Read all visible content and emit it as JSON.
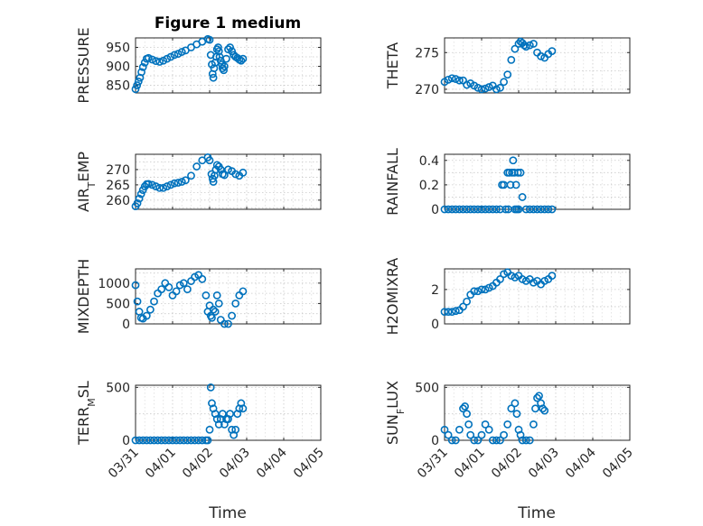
{
  "figure_title": "Figure 1 medium",
  "marker_color": "#0072BD",
  "chart_data": [
    {
      "type": "scatter",
      "ylabel": "PRESSURE",
      "title": "Figure 1 medium",
      "xlim": [
        0,
        5
      ],
      "ylim": [
        830,
        975
      ],
      "yticks": [
        850,
        900,
        950
      ],
      "x": [
        0.0,
        0.04,
        0.08,
        0.12,
        0.16,
        0.2,
        0.25,
        0.3,
        0.35,
        0.45,
        0.55,
        0.65,
        0.75,
        0.85,
        0.95,
        1.05,
        1.15,
        1.25,
        1.35,
        1.5,
        1.65,
        1.8,
        1.95,
        2.0,
        2.03,
        2.06,
        2.08,
        2.1,
        2.12,
        2.15,
        2.18,
        2.2,
        2.23,
        2.25,
        2.27,
        2.3,
        2.33,
        2.35,
        2.38,
        2.4,
        2.45,
        2.5,
        2.55,
        2.6,
        2.65,
        2.7,
        2.75,
        2.8,
        2.85,
        2.9
      ],
      "y": [
        840,
        850,
        860,
        870,
        885,
        898,
        910,
        920,
        922,
        918,
        914,
        912,
        915,
        920,
        925,
        930,
        933,
        938,
        942,
        950,
        958,
        965,
        972,
        970,
        930,
        905,
        880,
        870,
        895,
        910,
        925,
        945,
        950,
        940,
        925,
        915,
        905,
        895,
        890,
        900,
        920,
        945,
        950,
        940,
        930,
        925,
        922,
        918,
        915,
        920
      ]
    },
    {
      "type": "scatter",
      "ylabel": "THETA",
      "xlim": [
        0,
        5
      ],
      "ylim": [
        269.5,
        277
      ],
      "yticks": [
        270,
        275
      ],
      "x": [
        0.0,
        0.1,
        0.2,
        0.3,
        0.4,
        0.5,
        0.6,
        0.7,
        0.8,
        0.9,
        1.0,
        1.1,
        1.2,
        1.3,
        1.4,
        1.5,
        1.6,
        1.7,
        1.8,
        1.9,
        2.0,
        2.05,
        2.1,
        2.15,
        2.2,
        2.3,
        2.4,
        2.5,
        2.6,
        2.7,
        2.8,
        2.9
      ],
      "y": [
        271,
        271.3,
        271.5,
        271.4,
        271.2,
        271.2,
        270.6,
        270.8,
        270.5,
        270.2,
        270,
        270.1,
        270.3,
        270.5,
        270,
        270.2,
        271,
        272,
        274,
        275.5,
        276.2,
        276.5,
        276.3,
        276,
        275.8,
        276,
        276.2,
        275,
        274.5,
        274.3,
        274.8,
        275.2
      ]
    },
    {
      "type": "scatter",
      "ylabel": "AIR_TEMP",
      "xlim": [
        0,
        5
      ],
      "ylim": [
        257,
        275
      ],
      "yticks": [
        260,
        265,
        270
      ],
      "x": [
        0.0,
        0.05,
        0.1,
        0.15,
        0.2,
        0.25,
        0.3,
        0.35,
        0.45,
        0.55,
        0.65,
        0.75,
        0.85,
        0.95,
        1.05,
        1.15,
        1.25,
        1.35,
        1.5,
        1.65,
        1.8,
        1.95,
        2.0,
        2.05,
        2.08,
        2.1,
        2.13,
        2.17,
        2.2,
        2.25,
        2.3,
        2.35,
        2.4,
        2.5,
        2.6,
        2.7,
        2.8,
        2.9
      ],
      "y": [
        258,
        259,
        260.5,
        262,
        263.3,
        264.5,
        265.2,
        265.3,
        265,
        264.5,
        264,
        264,
        264.5,
        265,
        265.5,
        265.7,
        266,
        266.5,
        268,
        271,
        273,
        274,
        273,
        268.5,
        267,
        266,
        268,
        270,
        271.5,
        271,
        270,
        268.5,
        268.2,
        270,
        269.5,
        268.5,
        268,
        269
      ]
    },
    {
      "type": "scatter",
      "ylabel": "RAINFALL",
      "xlim": [
        0,
        5
      ],
      "ylim": [
        0,
        0.45
      ],
      "yticks": [
        0,
        0.2,
        0.4
      ],
      "x": [
        0.0,
        0.1,
        0.2,
        0.3,
        0.4,
        0.5,
        0.6,
        0.7,
        0.8,
        0.9,
        1.0,
        1.1,
        1.2,
        1.3,
        1.4,
        1.5,
        1.55,
        1.6,
        1.65,
        1.7,
        1.72,
        1.75,
        1.78,
        1.82,
        1.85,
        1.88,
        1.9,
        1.93,
        1.95,
        1.98,
        2.0,
        2.05,
        2.1,
        2.2,
        2.3,
        2.4,
        2.5,
        2.6,
        2.7,
        2.8,
        2.9
      ],
      "y": [
        0,
        0,
        0,
        0,
        0,
        0,
        0,
        0,
        0,
        0,
        0,
        0,
        0,
        0,
        0,
        0,
        0.2,
        0.2,
        0,
        0.3,
        0,
        0.3,
        0.2,
        0.3,
        0.4,
        0.3,
        0,
        0.2,
        0,
        0.3,
        0,
        0.3,
        0.1,
        0,
        0,
        0,
        0,
        0,
        0,
        0,
        0
      ]
    },
    {
      "type": "scatter",
      "ylabel": "MIXDEPTH",
      "xlim": [
        0,
        5
      ],
      "ylim": [
        0,
        1350
      ],
      "yticks": [
        0,
        500,
        1000
      ],
      "x": [
        0.0,
        0.05,
        0.1,
        0.15,
        0.2,
        0.3,
        0.4,
        0.5,
        0.6,
        0.7,
        0.8,
        0.9,
        1.0,
        1.1,
        1.2,
        1.3,
        1.4,
        1.5,
        1.6,
        1.7,
        1.8,
        1.9,
        1.95,
        2.0,
        2.03,
        2.06,
        2.1,
        2.15,
        2.2,
        2.25,
        2.3,
        2.4,
        2.5,
        2.6,
        2.7,
        2.8,
        2.9
      ],
      "y": [
        950,
        550,
        300,
        150,
        130,
        200,
        350,
        550,
        750,
        850,
        1000,
        900,
        700,
        800,
        950,
        1000,
        850,
        1050,
        1150,
        1200,
        1100,
        700,
        300,
        450,
        200,
        150,
        350,
        300,
        700,
        500,
        100,
        0,
        0,
        200,
        500,
        700,
        800
      ]
    },
    {
      "type": "scatter",
      "ylabel": "H2OMIXRA",
      "xlim": [
        0,
        5
      ],
      "ylim": [
        0,
        3.2
      ],
      "yticks": [
        0,
        2
      ],
      "x": [
        0.0,
        0.1,
        0.2,
        0.3,
        0.4,
        0.5,
        0.6,
        0.7,
        0.8,
        0.9,
        1.0,
        1.1,
        1.2,
        1.3,
        1.4,
        1.5,
        1.6,
        1.7,
        1.8,
        1.9,
        2.0,
        2.1,
        2.2,
        2.3,
        2.4,
        2.5,
        2.6,
        2.7,
        2.8,
        2.9
      ],
      "y": [
        0.7,
        0.7,
        0.7,
        0.75,
        0.8,
        1.0,
        1.3,
        1.7,
        1.9,
        1.9,
        2.0,
        2.0,
        2.1,
        2.2,
        2.4,
        2.6,
        2.9,
        3.0,
        2.8,
        2.7,
        2.8,
        2.6,
        2.5,
        2.6,
        2.4,
        2.5,
        2.3,
        2.5,
        2.6,
        2.8
      ]
    },
    {
      "type": "scatter",
      "ylabel": "TERR_MSL",
      "xlim": [
        0,
        5
      ],
      "ylim": [
        0,
        520
      ],
      "yticks": [
        0,
        500
      ],
      "x": [
        0.0,
        0.1,
        0.2,
        0.3,
        0.4,
        0.5,
        0.6,
        0.7,
        0.8,
        0.9,
        1.0,
        1.1,
        1.2,
        1.3,
        1.4,
        1.5,
        1.6,
        1.7,
        1.8,
        1.9,
        1.95,
        2.0,
        2.03,
        2.06,
        2.1,
        2.15,
        2.2,
        2.25,
        2.3,
        2.35,
        2.4,
        2.45,
        2.5,
        2.55,
        2.6,
        2.65,
        2.7,
        2.75,
        2.8,
        2.85,
        2.9
      ],
      "y": [
        0,
        0,
        0,
        0,
        0,
        0,
        0,
        0,
        0,
        0,
        0,
        0,
        0,
        0,
        0,
        0,
        0,
        0,
        0,
        0,
        0,
        100,
        500,
        350,
        300,
        250,
        200,
        150,
        200,
        250,
        150,
        200,
        200,
        250,
        100,
        50,
        100,
        250,
        300,
        350,
        300
      ]
    },
    {
      "type": "scatter",
      "ylabel": "SUN_FLUX",
      "xlim": [
        0,
        5
      ],
      "ylim": [
        0,
        520
      ],
      "yticks": [
        0,
        500
      ],
      "x": [
        0.0,
        0.1,
        0.2,
        0.3,
        0.4,
        0.5,
        0.55,
        0.6,
        0.65,
        0.7,
        0.8,
        0.9,
        1.0,
        1.1,
        1.2,
        1.3,
        1.4,
        1.5,
        1.6,
        1.7,
        1.8,
        1.9,
        1.95,
        2.0,
        2.05,
        2.1,
        2.2,
        2.3,
        2.4,
        2.45,
        2.5,
        2.55,
        2.6,
        2.65,
        2.7
      ],
      "y": [
        100,
        50,
        0,
        0,
        100,
        300,
        320,
        250,
        150,
        50,
        0,
        0,
        50,
        150,
        100,
        0,
        0,
        0,
        50,
        150,
        300,
        350,
        250,
        100,
        50,
        0,
        0,
        0,
        150,
        300,
        400,
        420,
        350,
        300,
        280
      ]
    }
  ],
  "x_axis": {
    "label": "Time",
    "ticks": [
      0,
      1,
      2,
      3,
      4,
      5
    ],
    "tick_labels": [
      "03/31",
      "04/01",
      "04/02",
      "04/03",
      "04/04",
      "04/05"
    ]
  }
}
